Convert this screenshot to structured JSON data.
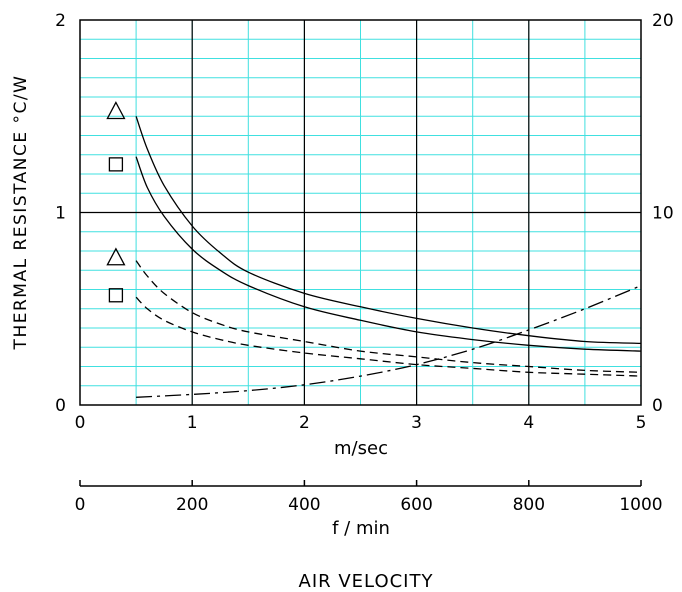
{
  "chart_data": {
    "type": "line",
    "ylabel": "THERMAL RESISTANCE  °C/W",
    "x_primary": {
      "label": "m/sec",
      "min": 0,
      "max": 5,
      "ticks": [
        0,
        1,
        2,
        3,
        4,
        5
      ]
    },
    "x_secondary": {
      "label": "f / min",
      "min": 0,
      "max": 1000,
      "ticks": [
        0,
        200,
        400,
        600,
        800,
        1000
      ]
    },
    "y_left": {
      "min": 0,
      "max": 2,
      "ticks": [
        0,
        1,
        2
      ]
    },
    "y_right": {
      "min": 0,
      "max": 20,
      "ticks": [
        0,
        10,
        20
      ]
    },
    "footer_label": "AIR VELOCITY",
    "grid": true,
    "grid_color": "#40e0e0",
    "markers": [
      {
        "shape": "triangle",
        "x": 0.32,
        "y": 1.53
      },
      {
        "shape": "square",
        "x": 0.32,
        "y": 1.25
      },
      {
        "shape": "triangle",
        "x": 0.32,
        "y": 0.77
      },
      {
        "shape": "square",
        "x": 0.32,
        "y": 0.57
      }
    ],
    "series": [
      {
        "axis": "left",
        "style": "solid",
        "x": [
          0.5,
          0.6,
          0.75,
          1.0,
          1.25,
          1.5,
          2.0,
          2.5,
          3.0,
          3.5,
          4.0,
          4.5,
          5.0
        ],
        "y": [
          1.5,
          1.33,
          1.14,
          0.93,
          0.79,
          0.69,
          0.58,
          0.51,
          0.45,
          0.4,
          0.36,
          0.33,
          0.32
        ]
      },
      {
        "axis": "left",
        "style": "solid",
        "x": [
          0.5,
          0.6,
          0.75,
          1.0,
          1.25,
          1.5,
          2.0,
          2.5,
          3.0,
          3.5,
          4.0,
          4.5,
          5.0
        ],
        "y": [
          1.29,
          1.13,
          0.98,
          0.81,
          0.7,
          0.62,
          0.51,
          0.44,
          0.38,
          0.34,
          0.31,
          0.29,
          0.28
        ]
      },
      {
        "axis": "left",
        "style": "dashed",
        "x": [
          0.5,
          0.6,
          0.75,
          1.0,
          1.25,
          1.5,
          2.0,
          2.5,
          3.0,
          3.5,
          4.0,
          4.5,
          5.0
        ],
        "y": [
          0.75,
          0.67,
          0.58,
          0.48,
          0.42,
          0.38,
          0.33,
          0.28,
          0.25,
          0.22,
          0.2,
          0.18,
          0.17
        ]
      },
      {
        "axis": "left",
        "style": "dashed",
        "x": [
          0.5,
          0.6,
          0.75,
          1.0,
          1.25,
          1.5,
          2.0,
          2.5,
          3.0,
          3.5,
          4.0,
          4.5,
          5.0
        ],
        "y": [
          0.56,
          0.5,
          0.44,
          0.38,
          0.34,
          0.31,
          0.27,
          0.24,
          0.21,
          0.19,
          0.17,
          0.16,
          0.15
        ]
      },
      {
        "axis": "right",
        "style": "dashdot",
        "x": [
          0.5,
          1.0,
          1.5,
          2.0,
          2.5,
          3.0,
          3.5,
          4.0,
          4.5,
          5.0
        ],
        "y": [
          0.4,
          0.55,
          0.75,
          1.05,
          1.5,
          2.1,
          2.9,
          3.9,
          5.0,
          6.2
        ]
      }
    ]
  }
}
